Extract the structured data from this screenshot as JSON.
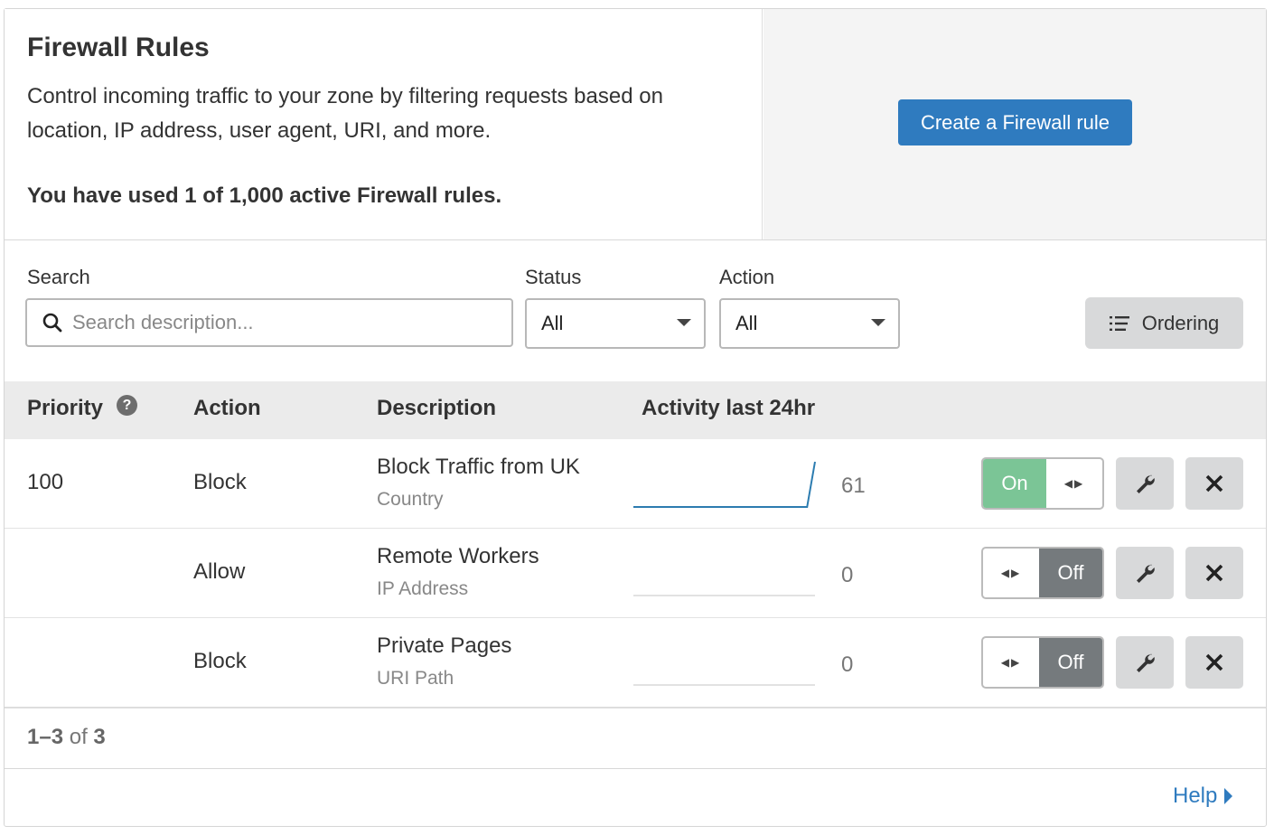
{
  "header": {
    "title": "Firewall Rules",
    "description": "Control incoming traffic to your zone by filtering requests based on location, IP address, user agent, URI, and more.",
    "usage": "You have used 1 of 1,000 active Firewall rules.",
    "create_button": "Create a Firewall rule"
  },
  "filters": {
    "search_label": "Search",
    "search_placeholder": "Search description...",
    "search_value": "",
    "status_label": "Status",
    "status_value": "All",
    "action_label": "Action",
    "action_value": "All",
    "ordering_button": "Ordering"
  },
  "table": {
    "columns": [
      "Priority",
      "Action",
      "Description",
      "Activity last 24hr"
    ],
    "rows": [
      {
        "priority": "100",
        "action": "Block",
        "description": "Block Traffic from UK",
        "type": "Country",
        "activity_count": "61",
        "activity_series": [
          0,
          0,
          0,
          0,
          0,
          0,
          0,
          0,
          0,
          0,
          0,
          0,
          0,
          0,
          0,
          0,
          0,
          0,
          0,
          0,
          0,
          0,
          0,
          61
        ],
        "enabled": true,
        "toggle_label": "On"
      },
      {
        "priority": "",
        "action": "Allow",
        "description": "Remote Workers",
        "type": "IP Address",
        "activity_count": "0",
        "activity_series": [
          0,
          0,
          0,
          0,
          0,
          0,
          0,
          0,
          0,
          0,
          0,
          0,
          0,
          0,
          0,
          0,
          0,
          0,
          0,
          0,
          0,
          0,
          0,
          0
        ],
        "enabled": false,
        "toggle_label": "Off"
      },
      {
        "priority": "",
        "action": "Block",
        "description": "Private Pages",
        "type": "URI Path",
        "activity_count": "0",
        "activity_series": [
          0,
          0,
          0,
          0,
          0,
          0,
          0,
          0,
          0,
          0,
          0,
          0,
          0,
          0,
          0,
          0,
          0,
          0,
          0,
          0,
          0,
          0,
          0,
          0
        ],
        "enabled": false,
        "toggle_label": "Off"
      }
    ]
  },
  "pagination": {
    "range": "1–3",
    "of": "of",
    "total": "3"
  },
  "footer": {
    "help": "Help"
  },
  "colors": {
    "primary": "#2f7bbf",
    "on": "#7bc596",
    "off": "#757a7d",
    "sparkline": "#2c7cb0"
  }
}
